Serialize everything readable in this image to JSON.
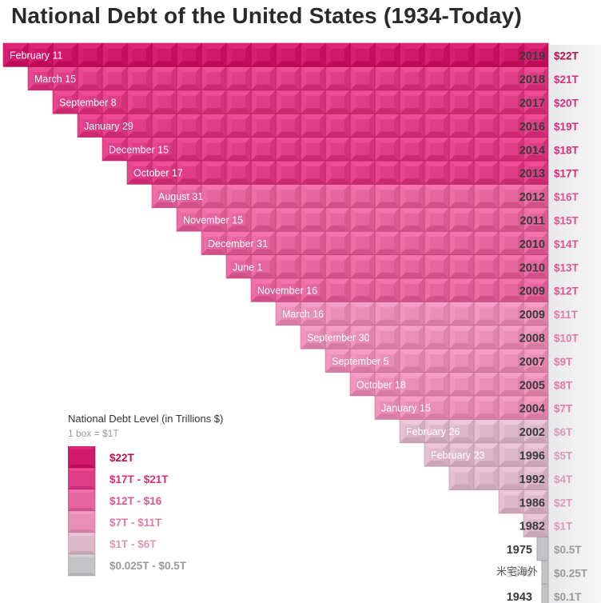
{
  "title": "National Debt of the United States (1934-Today)",
  "legend": {
    "title": "National Debt Level (in Trillions $)",
    "subtitle": "1 box = $1T",
    "items": [
      {
        "label": "$22T",
        "color": "#d0196a",
        "text_color": "#b5124f"
      },
      {
        "label": "$17T - $21T",
        "color": "#df3d86",
        "text_color": "#d42f7b"
      },
      {
        "label": "$12T - $16",
        "color": "#e5659e",
        "text_color": "#dd5590"
      },
      {
        "label": "$7T - $11T",
        "color": "#e98fb6",
        "text_color": "#e07aa6"
      },
      {
        "label": "$1T - $6T",
        "color": "#ddb8c9",
        "text_color": "#d99ab5"
      },
      {
        "label": "$0.025T - $0.5T",
        "color": "#c4c4c7",
        "text_color": "#999999"
      }
    ]
  },
  "watermark": "米宅海外",
  "chart_data": {
    "type": "bar",
    "title": "National Debt of the United States (1934-Today)",
    "unit": "Trillions $",
    "rows": [
      {
        "date": "February 11",
        "year": "2019",
        "label": "$22T",
        "value": 22
      },
      {
        "date": "March 15",
        "year": "2018",
        "label": "$21T",
        "value": 21
      },
      {
        "date": "September 8",
        "year": "2017",
        "label": "$20T",
        "value": 20
      },
      {
        "date": "January 29",
        "year": "2016",
        "label": "$19T",
        "value": 19
      },
      {
        "date": "December 15",
        "year": "2014",
        "label": "$18T",
        "value": 18
      },
      {
        "date": "October 17",
        "year": "2013",
        "label": "$17T",
        "value": 17
      },
      {
        "date": "August 31",
        "year": "2012",
        "label": "$16T",
        "value": 16
      },
      {
        "date": "November 15",
        "year": "2011",
        "label": "$15T",
        "value": 15
      },
      {
        "date": "December 31",
        "year": "2010",
        "label": "$14T",
        "value": 14
      },
      {
        "date": "June 1",
        "year": "2010",
        "label": "$13T",
        "value": 13
      },
      {
        "date": "November 16",
        "year": "2009",
        "label": "$12T",
        "value": 12
      },
      {
        "date": "March 16",
        "year": "2009",
        "label": "$11T",
        "value": 11
      },
      {
        "date": "September 30",
        "year": "2008",
        "label": "$10T",
        "value": 10
      },
      {
        "date": "September 5",
        "year": "2007",
        "label": "$9T",
        "value": 9
      },
      {
        "date": "October 18",
        "year": "2005",
        "label": "$8T",
        "value": 8
      },
      {
        "date": "January 15",
        "year": "2004",
        "label": "$7T",
        "value": 7
      },
      {
        "date": "February 26",
        "year": "2002",
        "label": "$6T",
        "value": 6
      },
      {
        "date": "February 23",
        "year": "1996",
        "label": "$5T",
        "value": 5
      },
      {
        "date": "",
        "year": "1992",
        "label": "$4T",
        "value": 4
      },
      {
        "date": "",
        "year": "1986",
        "label": "$2T",
        "value": 2
      },
      {
        "date": "",
        "year": "1982",
        "label": "$1T",
        "value": 1
      },
      {
        "date": "",
        "year": "1975",
        "label": "$0.5T",
        "value": 0.5
      },
      {
        "date": "",
        "year": "1945",
        "label": "$0.25T",
        "value": 0.25
      },
      {
        "date": "",
        "year": "1943",
        "label": "$0.1T",
        "value": 0.1
      }
    ]
  }
}
